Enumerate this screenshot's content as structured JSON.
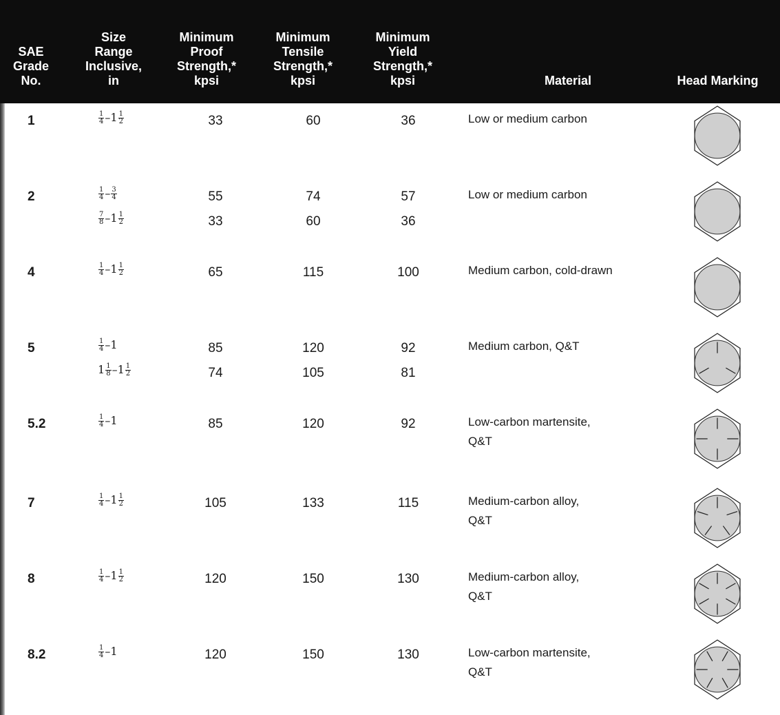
{
  "header": {
    "grade": "SAE\nGrade\nNo.",
    "size": "Size\nRange\nInclusive,\nin",
    "proof": "Minimum\nProof\nStrength,*\nkpsi",
    "tensile": "Minimum\nTensile\nStrength,*\nkpsi",
    "yield": "Minimum\nYield\nStrength,*\nkpsi",
    "material": "Material",
    "head": "Head Marking"
  },
  "rows": [
    {
      "grade": "1",
      "size1": {
        "pre": "",
        "a": [
          "1",
          "4"
        ],
        "mid": "–1",
        "b": [
          "1",
          "2"
        ],
        "post": ""
      },
      "proof1": "33",
      "tensile1": "60",
      "yield1": "36",
      "material": "Low or medium carbon",
      "marks": 0
    },
    {
      "grade": "2",
      "size1": {
        "pre": "",
        "a": [
          "1",
          "4"
        ],
        "mid": "–",
        "b": [
          "3",
          "4"
        ],
        "post": ""
      },
      "proof1": "55",
      "tensile1": "74",
      "yield1": "57",
      "size2": {
        "pre": "",
        "a": [
          "7",
          "8"
        ],
        "mid": "–1",
        "b": [
          "1",
          "2"
        ],
        "post": ""
      },
      "proof2": "33",
      "tensile2": "60",
      "yield2": "36",
      "material": "Low or medium carbon",
      "marks": 0
    },
    {
      "grade": "4",
      "size1": {
        "pre": "",
        "a": [
          "1",
          "4"
        ],
        "mid": "–1",
        "b": [
          "1",
          "2"
        ],
        "post": ""
      },
      "proof1": "65",
      "tensile1": "115",
      "yield1": "100",
      "material": "Medium carbon, cold-drawn",
      "marks": 0
    },
    {
      "grade": "5",
      "size1": {
        "pre": "",
        "a": [
          "1",
          "4"
        ],
        "mid": "–1",
        "b": null,
        "post": ""
      },
      "proof1": "85",
      "tensile1": "120",
      "yield1": "92",
      "size2": {
        "pre": "1",
        "a": [
          "1",
          "8"
        ],
        "mid": "–1",
        "b": [
          "1",
          "2"
        ],
        "post": ""
      },
      "proof2": "74",
      "tensile2": "105",
      "yield2": "81",
      "material": "Medium carbon, Q&T",
      "marks": 3
    },
    {
      "grade": "5.2",
      "size1": {
        "pre": "",
        "a": [
          "1",
          "4"
        ],
        "mid": "–1",
        "b": null,
        "post": ""
      },
      "proof1": "85",
      "tensile1": "120",
      "yield1": "92",
      "material": "Low-carbon martensite,\nQ&T",
      "marks": 4
    },
    {
      "grade": "7",
      "size1": {
        "pre": "",
        "a": [
          "1",
          "4"
        ],
        "mid": "–1",
        "b": [
          "1",
          "2"
        ],
        "post": ""
      },
      "proof1": "105",
      "tensile1": "133",
      "yield1": "115",
      "material": "Medium-carbon alloy,\nQ&T",
      "marks": 5
    },
    {
      "grade": "8",
      "size1": {
        "pre": "",
        "a": [
          "1",
          "4"
        ],
        "mid": "–1",
        "b": [
          "1",
          "2"
        ],
        "post": ""
      },
      "proof1": "120",
      "tensile1": "150",
      "yield1": "130",
      "material": "Medium-carbon alloy,\nQ&T",
      "marks": 6
    },
    {
      "grade": "8.2",
      "size1": {
        "pre": "",
        "a": [
          "1",
          "4"
        ],
        "mid": "–1",
        "b": null,
        "post": ""
      },
      "proof1": "120",
      "tensile1": "150",
      "yield1": "130",
      "material": "Low-carbon martensite,\nQ&T",
      "marks": 6,
      "rotate": true
    }
  ]
}
